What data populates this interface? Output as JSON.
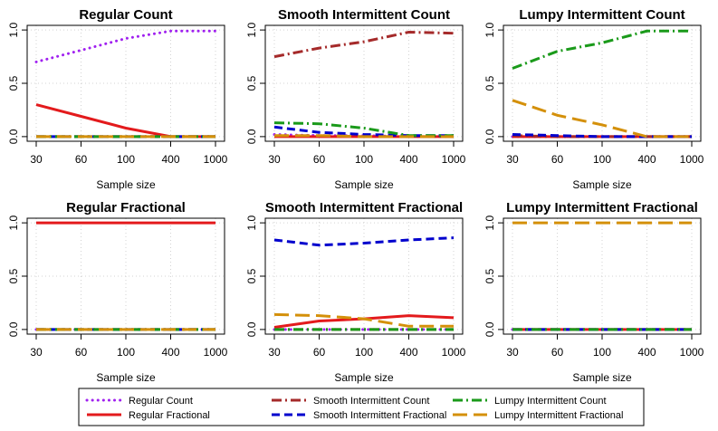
{
  "chart_data": {
    "type": "line",
    "x_categories": [
      "30",
      "60",
      "100",
      "400",
      "1000"
    ],
    "xlabel": "Sample size",
    "yticks": [
      "0.0",
      "0.5",
      "1.0"
    ],
    "ylim": [
      0,
      1
    ],
    "grid": true,
    "legend_position": "bottom",
    "series_styles": [
      {
        "name": "Regular Count",
        "color": "#a020f0",
        "dash": "dotted"
      },
      {
        "name": "Regular Fractional",
        "color": "#e31a1c",
        "dash": "solid"
      },
      {
        "name": "Smooth Intermittent Count",
        "color": "#a52a2a",
        "dash": "dashdot"
      },
      {
        "name": "Smooth Intermittent Fractional",
        "color": "#0000cd",
        "dash": "dashed"
      },
      {
        "name": "Lumpy Intermittent Count",
        "color": "#1a9a1a",
        "dash": "dashdot"
      },
      {
        "name": "Lumpy Intermittent Fractional",
        "color": "#d4900a",
        "dash": "longdash"
      }
    ],
    "panels": [
      {
        "title": "Regular Count",
        "series": [
          {
            "name": "Regular Count",
            "values": [
              0.7,
              0.81,
              0.92,
              0.99,
              0.99
            ]
          },
          {
            "name": "Regular Fractional",
            "values": [
              0.3,
              0.19,
              0.08,
              0.0,
              0.0
            ]
          },
          {
            "name": "Smooth Intermittent Count",
            "values": [
              0,
              0,
              0,
              0,
              0
            ]
          },
          {
            "name": "Smooth Intermittent Fractional",
            "values": [
              0,
              0,
              0,
              0,
              0
            ]
          },
          {
            "name": "Lumpy Intermittent Count",
            "values": [
              0,
              0,
              0,
              0,
              0
            ]
          },
          {
            "name": "Lumpy Intermittent Fractional",
            "values": [
              0,
              0,
              0,
              0,
              0
            ]
          }
        ]
      },
      {
        "title": "Smooth Intermittent Count",
        "series": [
          {
            "name": "Regular Count",
            "values": [
              0.02,
              0.01,
              0.01,
              0.0,
              0.0
            ]
          },
          {
            "name": "Regular Fractional",
            "values": [
              0,
              0,
              0,
              0,
              0
            ]
          },
          {
            "name": "Smooth Intermittent Count",
            "values": [
              0.75,
              0.83,
              0.89,
              0.98,
              0.97
            ]
          },
          {
            "name": "Smooth Intermittent Fractional",
            "values": [
              0.09,
              0.04,
              0.02,
              0.01,
              0.01
            ]
          },
          {
            "name": "Lumpy Intermittent Count",
            "values": [
              0.13,
              0.12,
              0.08,
              0.01,
              0.01
            ]
          },
          {
            "name": "Lumpy Intermittent Fractional",
            "values": [
              0.01,
              0.01,
              0.0,
              0.0,
              0.0
            ]
          }
        ]
      },
      {
        "title": "Lumpy Intermittent Count",
        "series": [
          {
            "name": "Regular Count",
            "values": [
              0,
              0,
              0,
              0,
              0
            ]
          },
          {
            "name": "Regular Fractional",
            "values": [
              0,
              0,
              0,
              0,
              0
            ]
          },
          {
            "name": "Smooth Intermittent Count",
            "values": [
              0.01,
              0.0,
              0.0,
              0.0,
              0.0
            ]
          },
          {
            "name": "Smooth Intermittent Fractional",
            "values": [
              0.02,
              0.01,
              0.0,
              0.0,
              0.0
            ]
          },
          {
            "name": "Lumpy Intermittent Count",
            "values": [
              0.64,
              0.8,
              0.88,
              0.99,
              0.99
            ]
          },
          {
            "name": "Lumpy Intermittent Fractional",
            "values": [
              0.34,
              0.2,
              0.11,
              0.0,
              0.0
            ]
          }
        ]
      },
      {
        "title": "Regular Fractional",
        "series": [
          {
            "name": "Regular Count",
            "values": [
              0,
              0,
              0,
              0,
              0
            ]
          },
          {
            "name": "Regular Fractional",
            "values": [
              1.0,
              1.0,
              1.0,
              1.0,
              1.0
            ]
          },
          {
            "name": "Smooth Intermittent Count",
            "values": [
              0,
              0,
              0,
              0,
              0
            ]
          },
          {
            "name": "Smooth Intermittent Fractional",
            "values": [
              0,
              0,
              0,
              0,
              0
            ]
          },
          {
            "name": "Lumpy Intermittent Count",
            "values": [
              0,
              0,
              0,
              0,
              0
            ]
          },
          {
            "name": "Lumpy Intermittent Fractional",
            "values": [
              0,
              0,
              0,
              0,
              0
            ]
          }
        ]
      },
      {
        "title": "Smooth Intermittent Fractional",
        "series": [
          {
            "name": "Regular Count",
            "values": [
              0,
              0,
              0,
              0,
              0
            ]
          },
          {
            "name": "Regular Fractional",
            "values": [
              0.02,
              0.08,
              0.1,
              0.13,
              0.11
            ]
          },
          {
            "name": "Smooth Intermittent Count",
            "values": [
              0.0,
              0.0,
              0.0,
              0.0,
              0.0
            ]
          },
          {
            "name": "Smooth Intermittent Fractional",
            "values": [
              0.84,
              0.79,
              0.81,
              0.84,
              0.86
            ]
          },
          {
            "name": "Lumpy Intermittent Count",
            "values": [
              0,
              0,
              0,
              0,
              0
            ]
          },
          {
            "name": "Lumpy Intermittent Fractional",
            "values": [
              0.14,
              0.13,
              0.1,
              0.03,
              0.03
            ]
          }
        ]
      },
      {
        "title": "Lumpy Intermittent Fractional",
        "series": [
          {
            "name": "Regular Count",
            "values": [
              0,
              0,
              0,
              0,
              0
            ]
          },
          {
            "name": "Regular Fractional",
            "values": [
              0,
              0,
              0,
              0,
              0
            ]
          },
          {
            "name": "Smooth Intermittent Count",
            "values": [
              0,
              0,
              0,
              0,
              0
            ]
          },
          {
            "name": "Smooth Intermittent Fractional",
            "values": [
              0,
              0,
              0,
              0,
              0
            ]
          },
          {
            "name": "Lumpy Intermittent Count",
            "values": [
              0,
              0,
              0,
              0,
              0
            ]
          },
          {
            "name": "Lumpy Intermittent Fractional",
            "values": [
              1.0,
              1.0,
              1.0,
              1.0,
              1.0
            ]
          }
        ]
      }
    ]
  }
}
